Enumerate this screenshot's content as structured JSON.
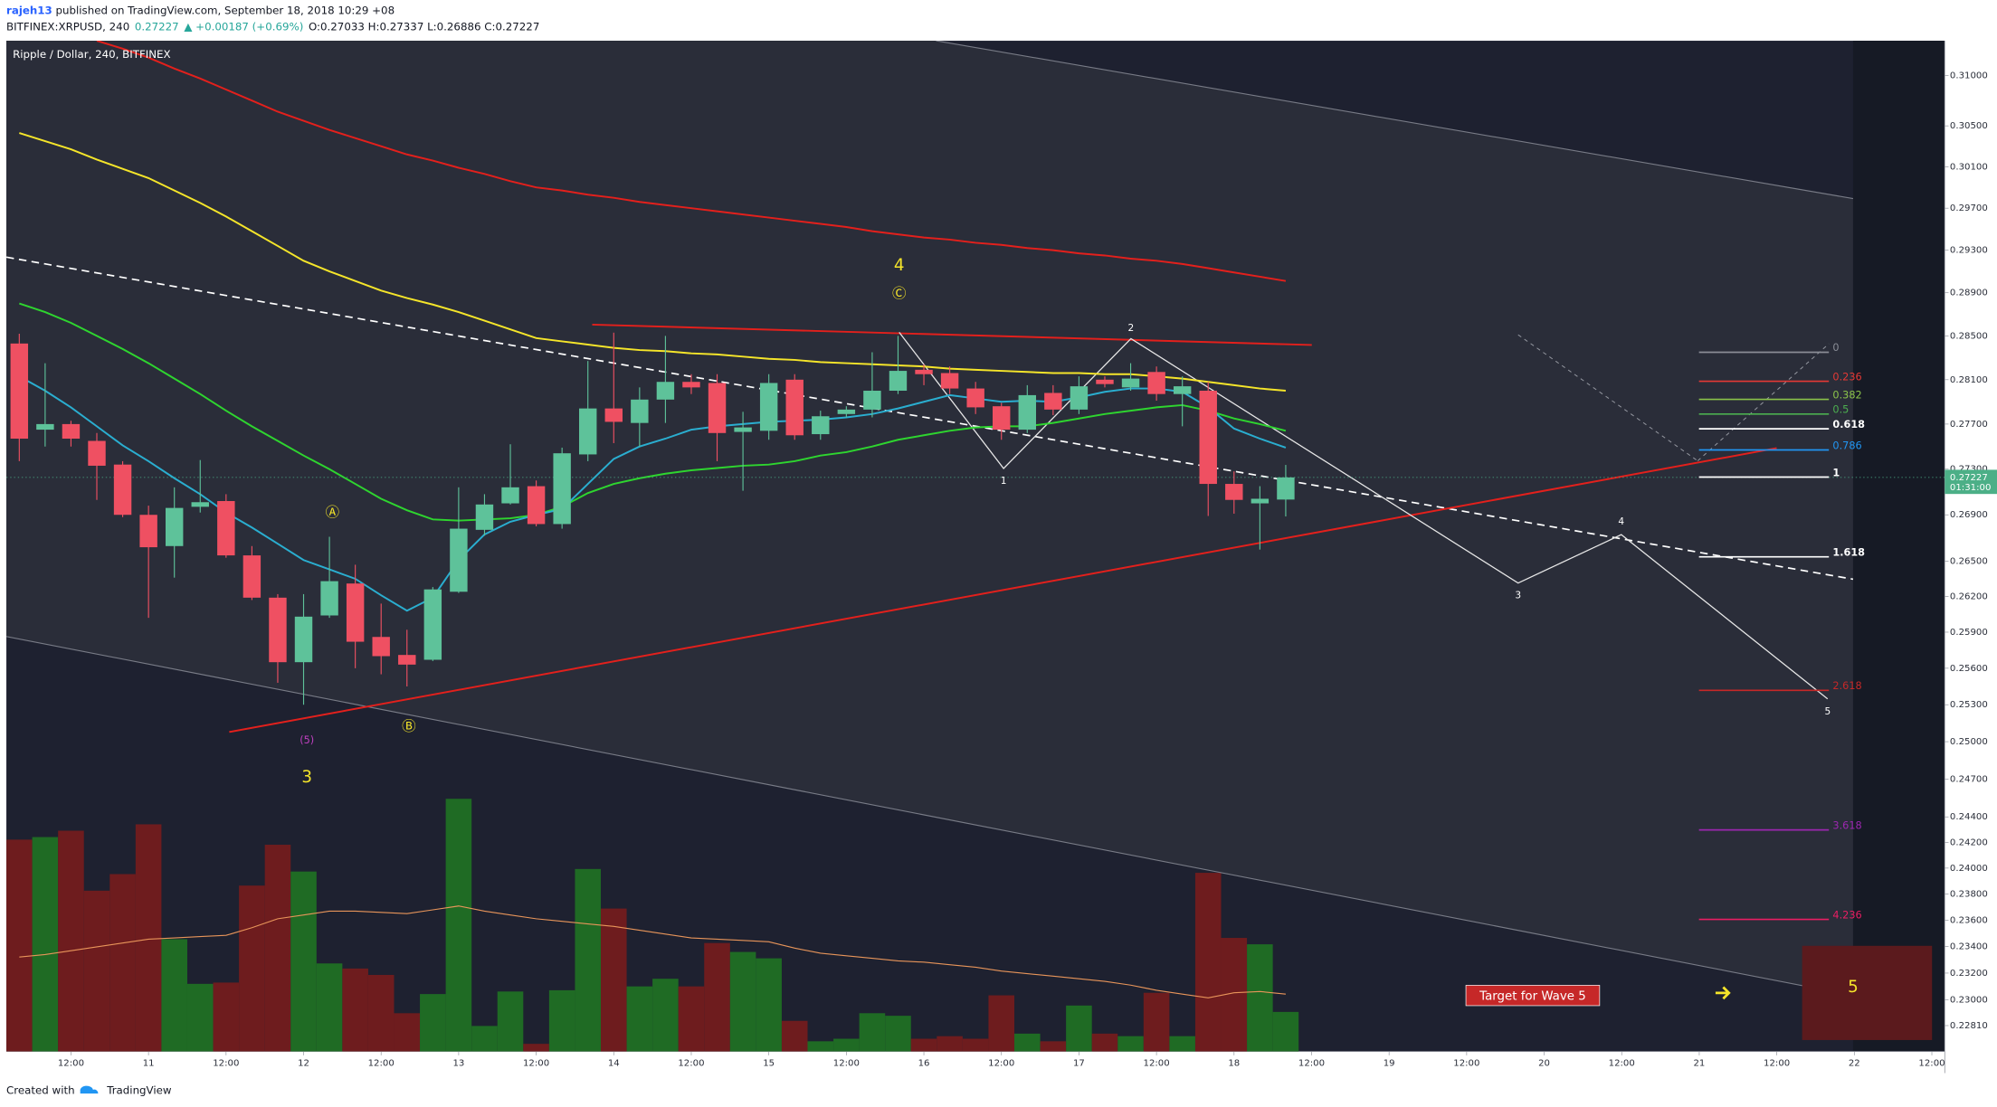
{
  "header": {
    "user": "rajeh13",
    "published": " published on TradingView.com, September 18, 2018 10:29 +08",
    "symbol": "BITFINEX:XRPUSD, 240",
    "last": "0.27227",
    "change": "▲ +0.00187 (+0.69%)",
    "ohlc": "O:0.27033 H:0.27337 L:0.26886 C:0.27227"
  },
  "chart_data": {
    "type": "candlestick",
    "legend": "Ripple / Dollar, 240, BITFINEX",
    "log": true,
    "ylim": [
      0.2262,
      0.3135
    ],
    "yticks": [
      {
        "value": 0.31,
        "label": "0.31000"
      },
      {
        "value": 0.305,
        "label": "0.30500"
      },
      {
        "value": 0.301,
        "label": "0.30100"
      },
      {
        "value": 0.297,
        "label": "0.29700"
      },
      {
        "value": 0.293,
        "label": "0.29300"
      },
      {
        "value": 0.289,
        "label": "0.28900"
      },
      {
        "value": 0.285,
        "label": "0.28500"
      },
      {
        "value": 0.281,
        "label": "0.28100"
      },
      {
        "value": 0.277,
        "label": "0.27700"
      },
      {
        "value": 0.273,
        "label": "0.27300"
      },
      {
        "value": 0.269,
        "label": "0.26900"
      },
      {
        "value": 0.265,
        "label": "0.26500"
      },
      {
        "value": 0.262,
        "label": "0.26200"
      },
      {
        "value": 0.259,
        "label": "0.25900"
      },
      {
        "value": 0.256,
        "label": "0.25600"
      },
      {
        "value": 0.253,
        "label": "0.25300"
      },
      {
        "value": 0.25,
        "label": "0.25000"
      },
      {
        "value": 0.247,
        "label": "0.24700"
      },
      {
        "value": 0.244,
        "label": "0.24400"
      },
      {
        "value": 0.242,
        "label": "0.24200"
      },
      {
        "value": 0.24,
        "label": "0.24000"
      },
      {
        "value": 0.238,
        "label": "0.23800"
      },
      {
        "value": 0.236,
        "label": "0.23600"
      },
      {
        "value": 0.234,
        "label": "0.23400"
      },
      {
        "value": 0.232,
        "label": "0.23200"
      },
      {
        "value": 0.23,
        "label": "0.23000"
      },
      {
        "value": 0.2281,
        "label": "0.22810"
      }
    ],
    "categories": [
      null,
      null,
      "12:00",
      null,
      null,
      "11",
      null,
      null,
      "12:00",
      null,
      null,
      "12",
      null,
      null,
      "12:00",
      null,
      null,
      "13",
      null,
      null,
      "12:00",
      null,
      null,
      "14",
      null,
      null,
      "12:00",
      null,
      null,
      "15",
      null,
      null,
      "12:00",
      null,
      null,
      "16",
      null,
      null,
      "12:00",
      null,
      null,
      "17",
      null,
      null,
      "12:00",
      null,
      null,
      "18",
      null,
      null,
      "12:00",
      null,
      null,
      "19",
      null,
      null,
      "12:00",
      null,
      null,
      "20",
      null,
      null,
      "12:00",
      null,
      null,
      "21",
      null,
      null,
      "12:00",
      null,
      null,
      "22",
      null,
      null,
      "12:00"
    ],
    "up_color": "#5ec29a",
    "down_color": "#ef5062",
    "open": [
      0.2843,
      0.2765,
      0.277,
      0.2755,
      0.2734,
      0.269,
      0.2663,
      0.2697,
      0.2702,
      0.2655,
      0.2619,
      0.2565,
      0.2604,
      0.2631,
      0.2586,
      0.2571,
      0.2567,
      0.2624,
      0.2677,
      0.27,
      0.2715,
      0.2682,
      0.2743,
      0.2784,
      0.2771,
      0.2792,
      0.2808,
      0.2807,
      0.2763,
      0.2764,
      0.281,
      0.2761,
      0.2779,
      0.2783,
      0.28,
      0.2819,
      0.2816,
      0.2802,
      0.2786,
      0.2765,
      0.2798,
      0.2783,
      0.281,
      0.2803,
      0.2817,
      0.2797,
      0.28,
      0.2717,
      0.27,
      0.27033,
      null,
      null,
      null,
      null,
      null,
      null,
      null,
      null,
      null,
      null,
      null,
      null,
      null,
      null,
      null,
      null,
      null,
      null,
      null,
      null,
      null,
      null,
      null,
      null,
      null
    ],
    "high": [
      0.2852,
      0.2825,
      0.2773,
      0.2762,
      0.2737,
      0.2698,
      0.2714,
      0.2738,
      0.2708,
      0.2663,
      0.2622,
      0.2622,
      0.2671,
      0.2647,
      0.2614,
      0.2592,
      0.2628,
      0.2714,
      0.2708,
      0.2752,
      0.272,
      0.2749,
      0.2827,
      0.2853,
      0.2803,
      0.285,
      0.2815,
      0.2815,
      0.2781,
      0.2815,
      0.2815,
      0.2782,
      0.2786,
      0.2835,
      0.285,
      0.2824,
      0.2822,
      0.2808,
      0.2789,
      0.2805,
      0.2805,
      0.2813,
      0.2813,
      0.2825,
      0.2822,
      0.2813,
      0.2808,
      0.2728,
      0.2715,
      0.27337,
      null,
      null,
      null,
      null,
      null,
      null,
      null,
      null,
      null,
      null,
      null,
      null,
      null,
      null,
      null,
      null,
      null,
      null,
      null,
      null,
      null,
      null,
      null,
      null,
      null
    ],
    "low": [
      0.2737,
      0.275,
      0.275,
      0.2703,
      0.2688,
      0.2602,
      0.2636,
      0.2692,
      0.2653,
      0.2617,
      0.2548,
      0.253,
      0.2602,
      0.256,
      0.2555,
      0.2545,
      0.2566,
      0.2623,
      0.2672,
      0.2699,
      0.268,
      0.2678,
      0.2737,
      0.2753,
      0.275,
      0.2771,
      0.2797,
      0.2737,
      0.2711,
      0.2756,
      0.2756,
      0.2756,
      0.2776,
      0.2776,
      0.2797,
      0.2805,
      0.2797,
      0.2779,
      0.2756,
      0.2762,
      0.2778,
      0.2779,
      0.2803,
      0.28,
      0.2791,
      0.2768,
      0.2689,
      0.2691,
      0.266,
      0.26886,
      null,
      null,
      null,
      null,
      null,
      null,
      null,
      null,
      null,
      null,
      null,
      null,
      null,
      null,
      null,
      null,
      null,
      null,
      null,
      null,
      null,
      null,
      null,
      null,
      null
    ],
    "close": [
      0.2757,
      0.277,
      0.2757,
      0.2733,
      0.269,
      0.2662,
      0.2696,
      0.2701,
      0.2655,
      0.2619,
      0.2565,
      0.2603,
      0.2633,
      0.2582,
      0.257,
      0.2563,
      0.2626,
      0.2678,
      0.2699,
      0.2714,
      0.2682,
      0.2744,
      0.2784,
      0.2772,
      0.2792,
      0.2808,
      0.2803,
      0.2762,
      0.2767,
      0.2807,
      0.276,
      0.2777,
      0.2783,
      0.28,
      0.2818,
      0.2815,
      0.2802,
      0.2785,
      0.2765,
      0.2796,
      0.2783,
      0.2804,
      0.2806,
      0.2811,
      0.2797,
      0.2804,
      0.2717,
      0.2703,
      0.2704,
      0.27227,
      null,
      null,
      null,
      null,
      null,
      null,
      null,
      null,
      null,
      null,
      null,
      null,
      null,
      null,
      null,
      null,
      null,
      null,
      null,
      null,
      null,
      null,
      null,
      null,
      null
    ],
    "volume": [
      166,
      168,
      173,
      126,
      139,
      178,
      88,
      53,
      54,
      130,
      162,
      141,
      69,
      65,
      60,
      30,
      45,
      198,
      20,
      47,
      6,
      48,
      143,
      112,
      51,
      57,
      51,
      85,
      78,
      73,
      24,
      8,
      10,
      30,
      28,
      10,
      12,
      10,
      44,
      14,
      8,
      36,
      14,
      12,
      46,
      12,
      140,
      89,
      84,
      31,
      null,
      null,
      null,
      null,
      null,
      null,
      null,
      null,
      null,
      null,
      null,
      null,
      null,
      null,
      null,
      null,
      null,
      null,
      null,
      null,
      null,
      null,
      null,
      null,
      null
    ],
    "volume_up_color": "#1f6b24",
    "volume_down_color": "#6e1c1e",
    "volume_ma": {
      "color": "#e8955a",
      "values": [
        74,
        76,
        79,
        82,
        85,
        88,
        89,
        90,
        91,
        97,
        104,
        107,
        110,
        110,
        109,
        108,
        111,
        114,
        110,
        107,
        104,
        102,
        100,
        98,
        95,
        92,
        89,
        88,
        87,
        86,
        81,
        77,
        75,
        73,
        71,
        70,
        68,
        66,
        63,
        61,
        59,
        57,
        55,
        52,
        48,
        45,
        42,
        46,
        47,
        45,
        null,
        null,
        null,
        null,
        null,
        null,
        null,
        null,
        null,
        null,
        null,
        null,
        null,
        null,
        null,
        null,
        null,
        null,
        null,
        null,
        null,
        null,
        null,
        null,
        null
      ]
    },
    "indicators": [
      {
        "color": "#e3201c",
        "values": [
          null,
          null,
          null,
          0.3135,
          0.3127,
          0.3118,
          0.3107,
          0.3097,
          0.3086,
          0.3075,
          0.3064,
          0.3055,
          0.3046,
          0.3038,
          0.303,
          0.3022,
          0.3016,
          0.3009,
          0.3003,
          0.2996,
          0.299,
          0.2987,
          0.2983,
          0.298,
          0.2976,
          0.2973,
          0.297,
          0.2967,
          0.2964,
          0.2961,
          0.2958,
          0.2955,
          0.2952,
          0.2948,
          0.2945,
          0.2942,
          0.294,
          0.2937,
          0.2935,
          0.2932,
          0.293,
          0.2927,
          0.2925,
          0.2922,
          0.292,
          0.2917,
          0.2913,
          0.2909,
          0.2905,
          0.2901,
          null,
          null,
          null,
          null,
          null,
          null,
          null,
          null,
          null,
          null,
          null,
          null,
          null,
          null,
          null,
          null,
          null,
          null,
          null,
          null,
          null,
          null,
          null,
          null,
          null
        ]
      },
      {
        "color": "#f5e52a",
        "values": [
          0.3043,
          0.3035,
          0.3027,
          0.3017,
          0.3008,
          0.2999,
          0.2987,
          0.2975,
          0.2962,
          0.2948,
          0.2934,
          0.292,
          0.291,
          0.2901,
          0.2892,
          0.2885,
          0.2879,
          0.2872,
          0.2864,
          0.2856,
          0.2848,
          0.2845,
          0.2842,
          0.2839,
          0.2837,
          0.2836,
          0.2834,
          0.2833,
          0.2831,
          0.2829,
          0.2828,
          0.2826,
          0.2825,
          0.2824,
          0.2823,
          0.2822,
          0.282,
          0.2819,
          0.2818,
          0.2817,
          0.2816,
          0.2816,
          0.2815,
          0.2815,
          0.2813,
          0.2811,
          0.2808,
          0.2805,
          0.2802,
          0.28,
          null,
          null,
          null,
          null,
          null,
          null,
          null,
          null,
          null,
          null,
          null,
          null,
          null,
          null,
          null,
          null,
          null,
          null,
          null,
          null,
          null,
          null,
          null,
          null,
          null
        ]
      },
      {
        "color": "#2ed52f",
        "values": [
          0.288,
          0.2872,
          0.2862,
          0.285,
          0.2838,
          0.2825,
          0.2811,
          0.2797,
          0.2782,
          0.2768,
          0.2755,
          0.2742,
          0.273,
          0.2717,
          0.2704,
          0.2694,
          0.2686,
          0.2685,
          0.2686,
          0.2687,
          0.269,
          0.2697,
          0.2709,
          0.2717,
          0.2722,
          0.2726,
          0.2729,
          0.2731,
          0.2733,
          0.2734,
          0.2737,
          0.2742,
          0.2745,
          0.275,
          0.2756,
          0.276,
          0.2764,
          0.2767,
          0.2768,
          0.2768,
          0.2771,
          0.2775,
          0.2779,
          0.2782,
          0.2785,
          0.2787,
          0.2782,
          0.2775,
          0.277,
          0.2764,
          null,
          null,
          null,
          null,
          null,
          null,
          null,
          null,
          null,
          null,
          null,
          null,
          null,
          null,
          null,
          null,
          null,
          null,
          null,
          null,
          null,
          null,
          null,
          null,
          null
        ]
      },
      {
        "color": "#2aaed0",
        "values": [
          0.2813,
          0.28,
          0.2785,
          0.2768,
          0.2751,
          0.2737,
          0.2722,
          0.2708,
          0.2692,
          0.2679,
          0.2665,
          0.2651,
          0.2643,
          0.2635,
          0.2621,
          0.2608,
          0.2619,
          0.2651,
          0.2673,
          0.2684,
          0.269,
          0.2695,
          0.2717,
          0.2739,
          0.275,
          0.2757,
          0.2765,
          0.2768,
          0.277,
          0.2772,
          0.2773,
          0.2774,
          0.2776,
          0.2779,
          0.2784,
          0.279,
          0.2796,
          0.2793,
          0.279,
          0.2791,
          0.279,
          0.2794,
          0.2799,
          0.2802,
          0.2802,
          0.2799,
          0.2785,
          0.2766,
          0.2757,
          0.2749,
          null,
          null,
          null,
          null,
          null,
          null,
          null,
          null,
          null,
          null,
          null,
          null,
          null,
          null,
          null,
          null,
          null,
          null,
          null,
          null,
          null,
          null,
          null,
          null,
          null
        ]
      }
    ],
    "price_line_color": "#4caf87",
    "countdown": "01:31:00",
    "fib": {
      "from": 0.2835,
      "to": 0.2723,
      "levels": [
        0,
        0.236,
        0.382,
        0.5,
        0.618,
        0.786,
        1,
        1.618,
        2.618,
        3.618,
        4.236
      ],
      "colors": [
        "#8a8d96",
        "#e53935",
        "#8bc34a",
        "#4caf50",
        "#ffffff",
        "#2196f3",
        "#ffffff",
        "#ffffff",
        "#c62828",
        "#9c27b0",
        "#e91e63"
      ]
    },
    "annotations": [
      "4",
      "Ⓒ",
      "Ⓐ",
      "Ⓑ",
      "(5)",
      "3",
      "1",
      "2",
      "3",
      "4",
      "5",
      "5"
    ],
    "target": "Target for Wave 5"
  },
  "footer": {
    "created": "Created with",
    "brand": "TradingView"
  }
}
